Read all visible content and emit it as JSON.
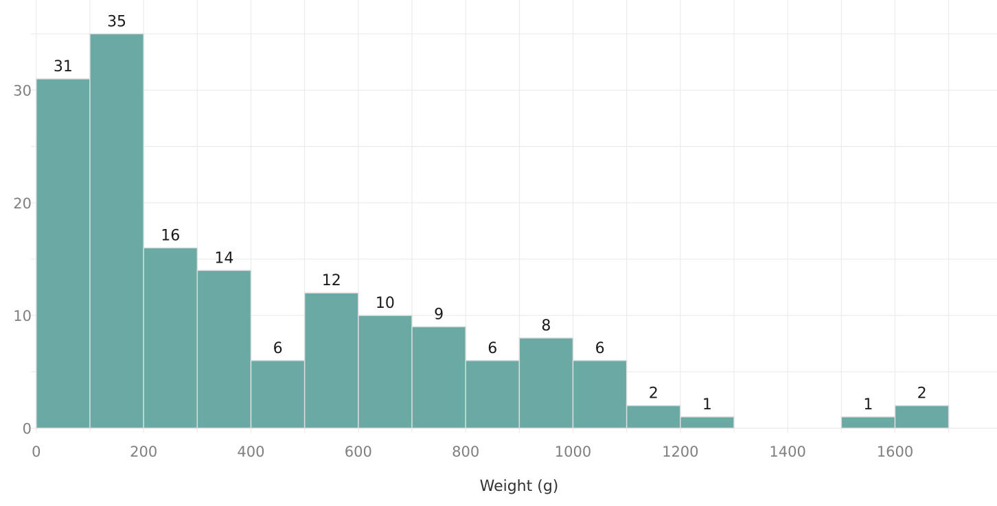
{
  "chart_data": {
    "type": "bar",
    "subtype": "histogram",
    "title": "",
    "xlabel": "Weight (g)",
    "ylabel": "",
    "bin_width": 100,
    "bins": [
      {
        "start": 0,
        "end": 100,
        "count": 31
      },
      {
        "start": 100,
        "end": 200,
        "count": 35
      },
      {
        "start": 200,
        "end": 300,
        "count": 16
      },
      {
        "start": 300,
        "end": 400,
        "count": 14
      },
      {
        "start": 400,
        "end": 500,
        "count": 6
      },
      {
        "start": 500,
        "end": 600,
        "count": 12
      },
      {
        "start": 600,
        "end": 700,
        "count": 10
      },
      {
        "start": 700,
        "end": 800,
        "count": 9
      },
      {
        "start": 800,
        "end": 900,
        "count": 6
      },
      {
        "start": 900,
        "end": 1000,
        "count": 8
      },
      {
        "start": 1000,
        "end": 1100,
        "count": 6
      },
      {
        "start": 1100,
        "end": 1200,
        "count": 2
      },
      {
        "start": 1200,
        "end": 1300,
        "count": 1
      },
      {
        "start": 1500,
        "end": 1600,
        "count": 1
      },
      {
        "start": 1600,
        "end": 1700,
        "count": 2
      }
    ],
    "xlim": [
      -10,
      1790
    ],
    "ylim": [
      -0.4,
      38
    ],
    "xticks": [
      0,
      200,
      400,
      600,
      800,
      1000,
      1200,
      1400,
      1600
    ],
    "yticks": [
      0,
      10,
      20,
      30
    ],
    "grid": true,
    "legend": "none",
    "colors": {
      "bar_fill": "#6aa9a4",
      "bar_edge": "#d9dedd",
      "grid": "#ebebeb",
      "tick_label": "#7f7f7f",
      "axis_title": "#333333",
      "data_label": "#1a1a1a"
    }
  }
}
